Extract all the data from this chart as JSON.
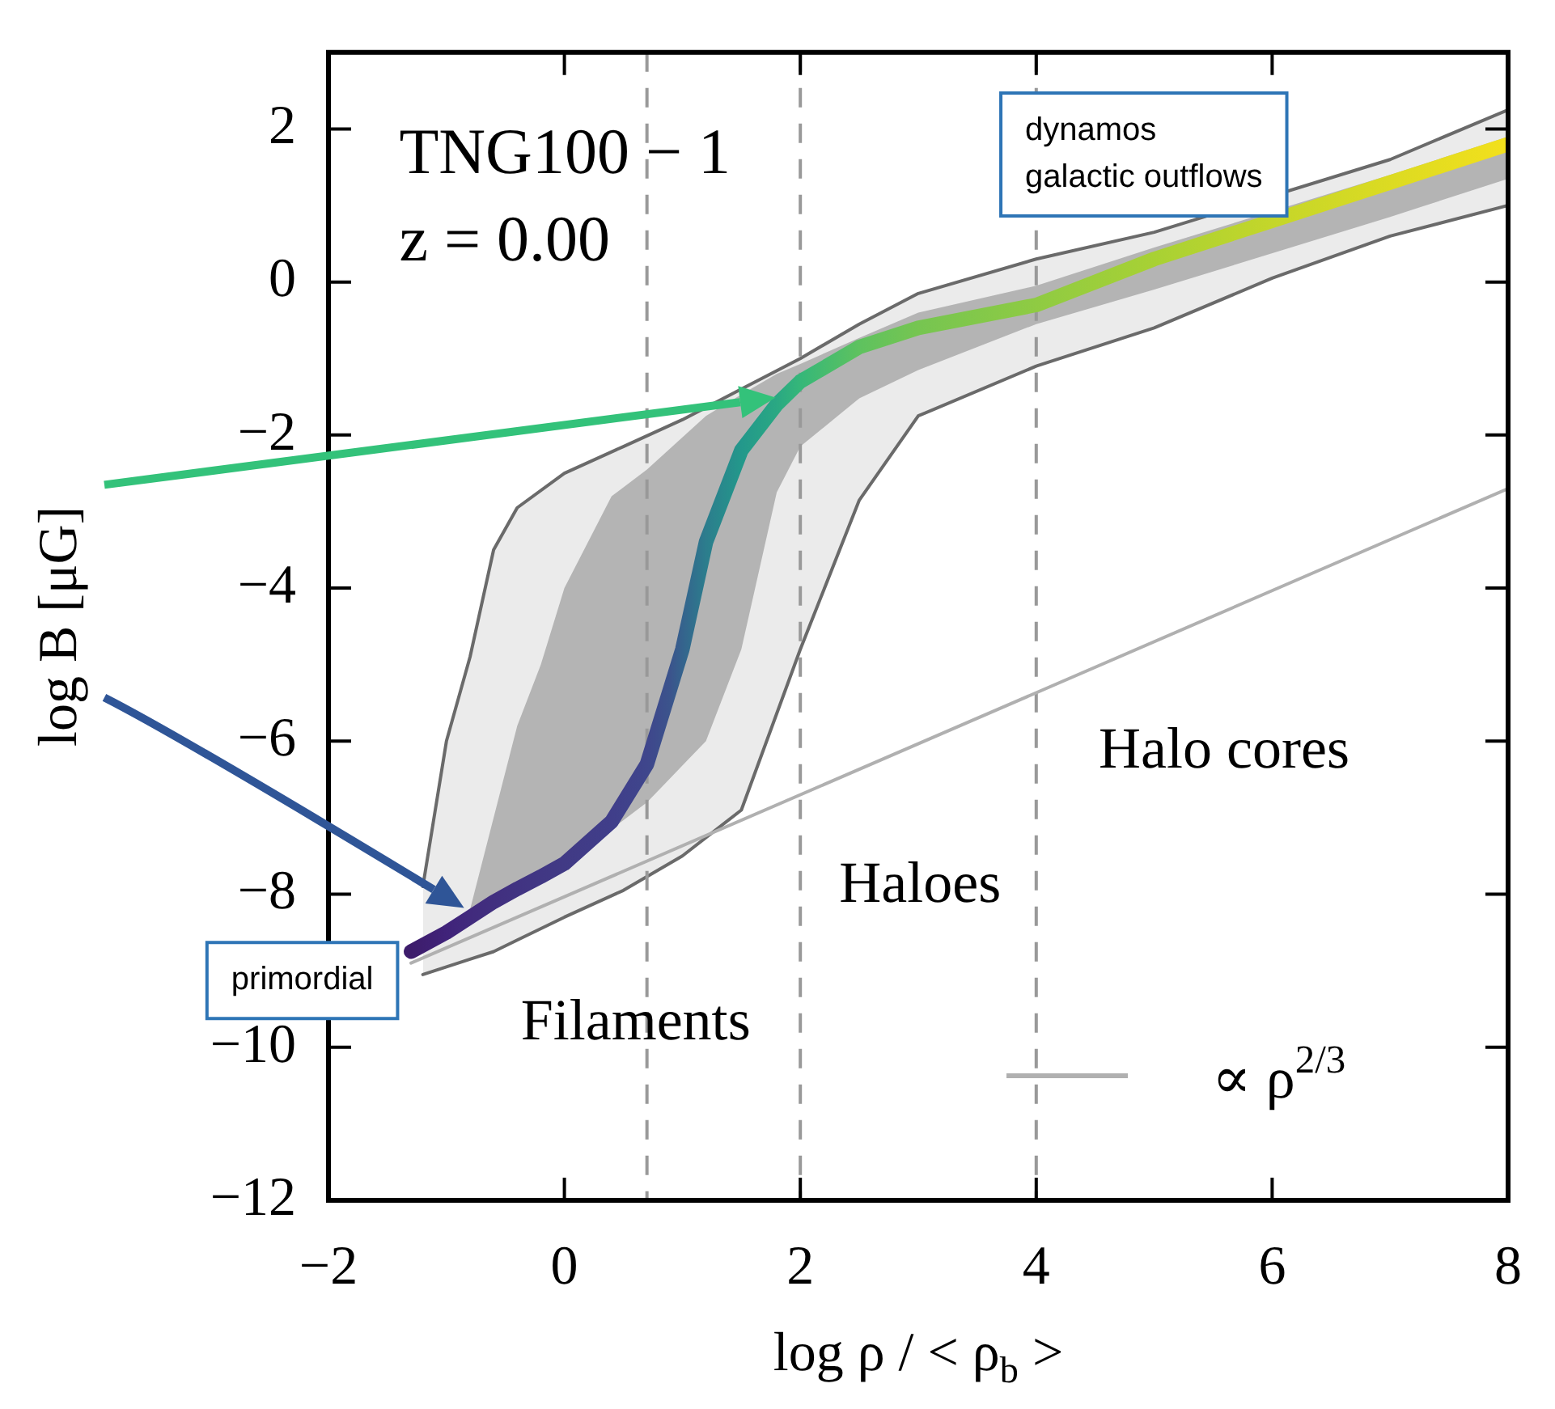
{
  "chart_data": {
    "type": "line",
    "xlabel": "log ρ / < ρ$_{b}$ >",
    "ylabel": "log B [μG]",
    "xlim": [
      -2,
      8
    ],
    "ylim": [
      -12,
      3
    ],
    "xticks": [
      -2,
      0,
      2,
      4,
      6,
      8
    ],
    "yticks": [
      -12,
      -10,
      -8,
      -6,
      -4,
      -2,
      0,
      2
    ],
    "legend": "bottom right",
    "series": [
      {
        "color": "#6a6a6a",
        "x": [
          -1.2,
          -1,
          -0.8,
          -0.6,
          -0.4,
          0,
          0.5,
          1,
          1.5,
          2,
          2.5,
          3,
          4,
          5,
          6,
          7,
          8
        ],
        "values": [
          -7.9,
          -6.0,
          -4.9,
          -3.5,
          -2.95,
          -2.5,
          -2.15,
          -1.8,
          -1.4,
          -1.0,
          -0.55,
          -0.15,
          0.3,
          0.65,
          null,
          1.6,
          2.25
        ]
      },
      {
        "color": "#6a6a6a",
        "x": [
          -1.2,
          -1,
          -0.8,
          -0.6,
          -0.4,
          0,
          0.5,
          1,
          1.5,
          2,
          2.5,
          3,
          4,
          5,
          6,
          7,
          8
        ],
        "values": [
          -9.05,
          -8.95,
          -8.85,
          -8.75,
          -8.6,
          -8.3,
          -7.95,
          -7.5,
          -6.9,
          -4.8,
          -2.85,
          -1.75,
          -1.1,
          -0.6,
          0.05,
          0.6,
          1.0
        ]
      },
      {
        "color": "#2c7d8d",
        "x": [
          -1.3,
          -1,
          -0.8,
          -0.6,
          -0.4,
          -0.2,
          0,
          0.4,
          0.7,
          0.9,
          1,
          1.2,
          1.5,
          1.8,
          2,
          2.5,
          3,
          4,
          5,
          6,
          7,
          8
        ],
        "values": [
          -8.75,
          -8.5,
          -8.3,
          -8.1,
          -7.93,
          -7.77,
          -7.6,
          -7.05,
          -6.3,
          -5.3,
          -4.8,
          -3.4,
          -2.2,
          -1.6,
          -1.3,
          -0.85,
          -0.6,
          -0.3,
          0.3,
          0.8,
          1.3,
          1.8
        ],
        "upper": [
          null,
          null,
          -8.2,
          -7.0,
          -5.8,
          -5.0,
          -4.0,
          -2.8,
          -2.45,
          -2.17,
          -2.03,
          -1.75,
          -1.47,
          -1.2,
          -1.07,
          -0.73,
          -0.4,
          -0.05,
          0.45,
          null,
          1.4,
          1.9
        ],
        "lower": [
          null,
          null,
          -8.3,
          -8.15,
          -8.0,
          -7.85,
          -7.7,
          -7.15,
          -6.8,
          -6.48,
          -6.32,
          -6.0,
          -4.8,
          -2.75,
          -2.15,
          -1.52,
          -1.15,
          -0.55,
          -0.1,
          null,
          0.85,
          1.35
        ],
        "colors": [
          "#3d1c6b",
          "#40237a",
          "#412a7d",
          "#412f7f",
          "#413382",
          "#413784",
          "#413a85",
          "#403e8a",
          "#3f468c",
          "#3b548c",
          "#35638d",
          "#2c7d8d",
          "#23988b",
          "#2aa883",
          "#35b779",
          "#5ec25f",
          "#76c551",
          "#8fcb43",
          "#a8d134",
          "#c4d62a",
          "#dcdb22",
          "#f3e01c"
        ]
      },
      {
        "name": "∝ ρ$^{2/3}$",
        "color": "#b0b0b0",
        "x": [
          -1.3,
          8
        ],
        "values": [
          -8.9,
          -2.7
        ]
      }
    ],
    "ref_lines": [
      {
        "axis": "x",
        "value": 0.7,
        "color": "#999999",
        "line_style": "dashed"
      },
      {
        "axis": "x",
        "value": 2,
        "color": "#999999",
        "line_style": "dashed"
      },
      {
        "axis": "x",
        "value": 4,
        "color": "#999999",
        "line_style": "dashed"
      }
    ],
    "annotations": [
      "TNG100 − 1",
      "z = 0.00",
      "Filaments",
      "Haloes",
      "Halo cores",
      "dynamos\ngalactic outflows",
      "primordial"
    ]
  }
}
